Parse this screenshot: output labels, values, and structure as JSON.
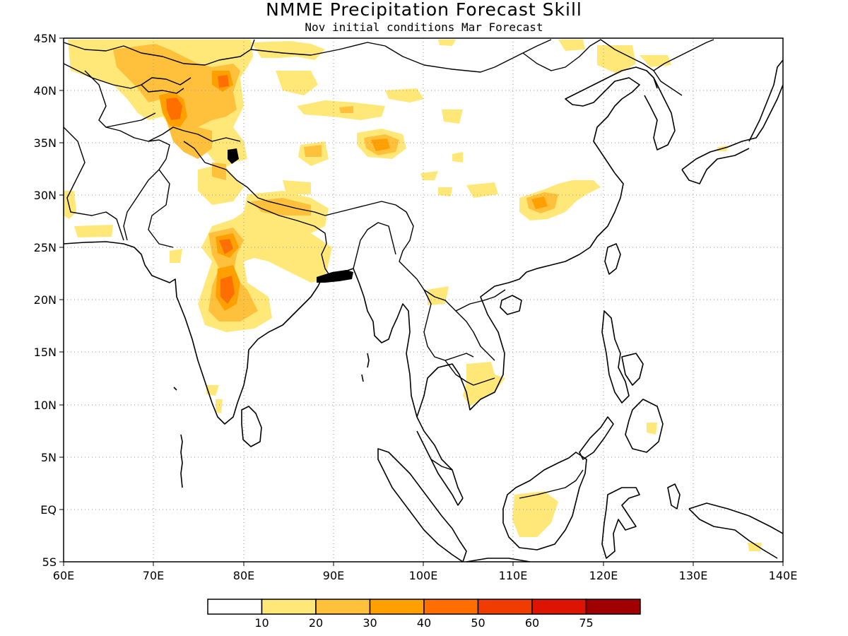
{
  "title": "NMME Precipitation Forecast Skill",
  "subtitle": "Nov initial conditions  Mar Forecast",
  "map": {
    "x_ticks": [
      "60E",
      "70E",
      "80E",
      "90E",
      "100E",
      "110E",
      "120E",
      "130E",
      "140E"
    ],
    "y_ticks": [
      "45N",
      "40N",
      "35N",
      "30N",
      "25N",
      "20N",
      "15N",
      "10N",
      "5N",
      "EQ",
      "5S"
    ],
    "lon_range": [
      60,
      140
    ],
    "lat_range": [
      -5,
      45
    ],
    "grid": "dotted"
  },
  "colorbar": {
    "levels": [
      "10",
      "20",
      "30",
      "40",
      "50",
      "60",
      "75"
    ],
    "colors": [
      "#ffffff",
      "#ffe878",
      "#ffc03c",
      "#ffa000",
      "#ff6e00",
      "#f03c00",
      "#dc1400",
      "#a00000"
    ]
  }
}
